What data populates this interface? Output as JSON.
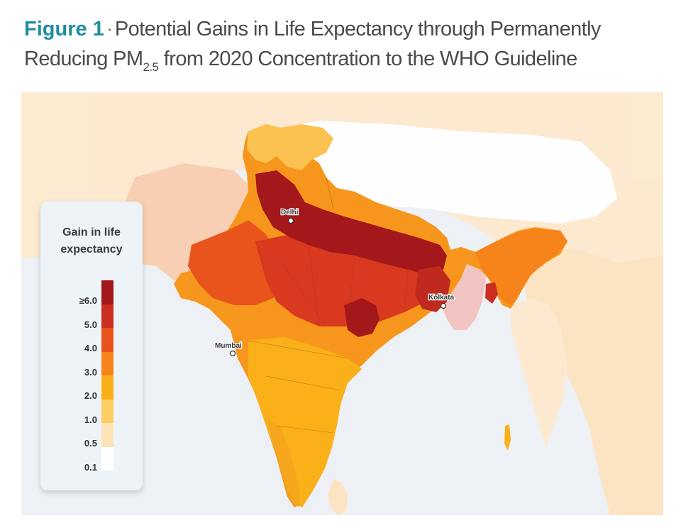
{
  "title": {
    "figure_label": "Figure 1",
    "separator": "·",
    "line1": "Potential Gains in Life Expectancy through Permanently",
    "line2_pre": "Reducing PM",
    "pollutant_subscript": "2.5",
    "line2_post": " from 2020 Concentration to the WHO Guideline"
  },
  "legend": {
    "title_line1": "Gain in life",
    "title_line2": "expectancy",
    "ticks": [
      "≥6.0",
      "5.0",
      "4.0",
      "3.0",
      "2.0",
      "1.0",
      "0.5",
      "0.1"
    ],
    "colors": [
      "#a4171b",
      "#cc2f1f",
      "#e9541d",
      "#f6841a",
      "#fab019",
      "#fcce63",
      "#fde4b8",
      "#ffffff"
    ]
  },
  "cities": [
    "Delhi",
    "Kolkata",
    "Mumbai"
  ],
  "colors": {
    "water": "#edf1f6",
    "title_accent": "#1f8ea0",
    "plateau": "#ffffff"
  }
}
